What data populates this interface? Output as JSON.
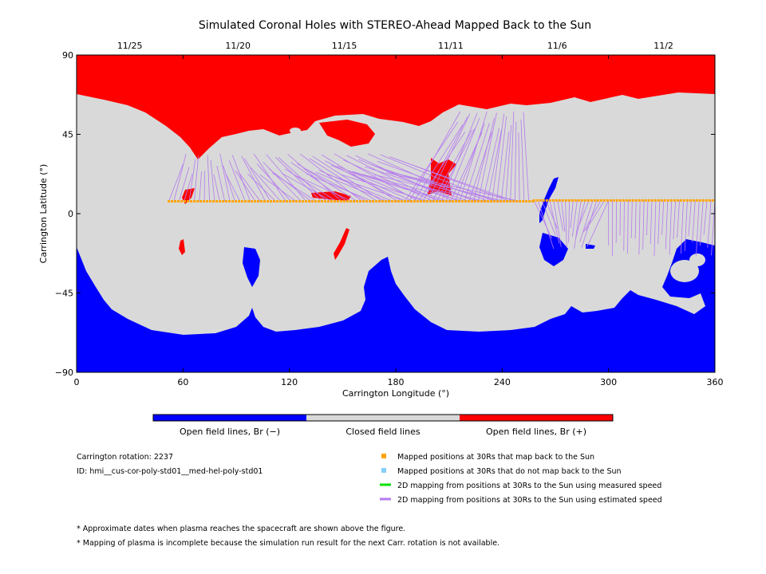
{
  "chart_data": {
    "type": "map",
    "title": "Simulated Coronal Holes with STEREO-Ahead Mapped Back to the Sun",
    "xlabel": "Carrington Longitude (°)",
    "ylabel": "Carrington Latitude (°)",
    "xlim": [
      0,
      360
    ],
    "ylim": [
      -90,
      90
    ],
    "x_ticks": [
      0,
      60,
      120,
      180,
      240,
      300,
      360
    ],
    "y_ticks": [
      -90,
      -45,
      0,
      45,
      90
    ],
    "x_tick_labels": [
      "0",
      "60",
      "120",
      "180",
      "240",
      "300",
      "360"
    ],
    "y_tick_labels": [
      "−90",
      "−45",
      "0",
      "45",
      "90"
    ],
    "top_date_ticks": [
      {
        "label": "11/25",
        "lon": 30
      },
      {
        "label": "11/20",
        "lon": 91
      },
      {
        "label": "11/15",
        "lon": 151
      },
      {
        "label": "11/11",
        "lon": 211
      },
      {
        "label": "11/6",
        "lon": 271
      },
      {
        "label": "11/2",
        "lon": 331
      }
    ],
    "regions": {
      "closed": "#d9d9d9",
      "open_negative": "#0000ff",
      "open_positive": "#ff0000"
    },
    "mapped_points": {
      "color": "#ffa500",
      "segments": [
        {
          "lon_start": 52,
          "lon_end": 258,
          "lat": 7
        },
        {
          "lon_start": 258,
          "lon_end": 360,
          "lat": 7.5
        }
      ]
    },
    "fieldline_color": "#b57bee",
    "colorbar": {
      "colors": [
        "#0000ff",
        "#d9d9d9",
        "#ff0000"
      ],
      "labels": [
        "Open field lines, Br (−)",
        "Closed field lines",
        "Open field lines, Br (+)"
      ]
    }
  },
  "info": {
    "rotation": "Carrington rotation: 2237",
    "id": "ID: hmi__cus-cor-poly-std01__med-hel-poly-std01"
  },
  "legend": [
    {
      "label": "Mapped positions at 30Rs that map back to the Sun",
      "color": "#ffa500",
      "kind": "square"
    },
    {
      "label": "Mapped positions at 30Rs that do not map back to the Sun",
      "color": "#87cefa",
      "kind": "square"
    },
    {
      "label": "2D mapping from positions at 30Rs to the Sun using measured speed",
      "color": "#00e000",
      "kind": "line"
    },
    {
      "label": "2D mapping from positions at 30Rs to the Sun using estimated speed",
      "color": "#b57bee",
      "kind": "line"
    }
  ],
  "notes": [
    "* Approximate dates when plasma reaches the spacecraft are shown above the figure.",
    "* Mapping of plasma is incomplete because the simulation run result for the next Carr. rotation is not available."
  ]
}
